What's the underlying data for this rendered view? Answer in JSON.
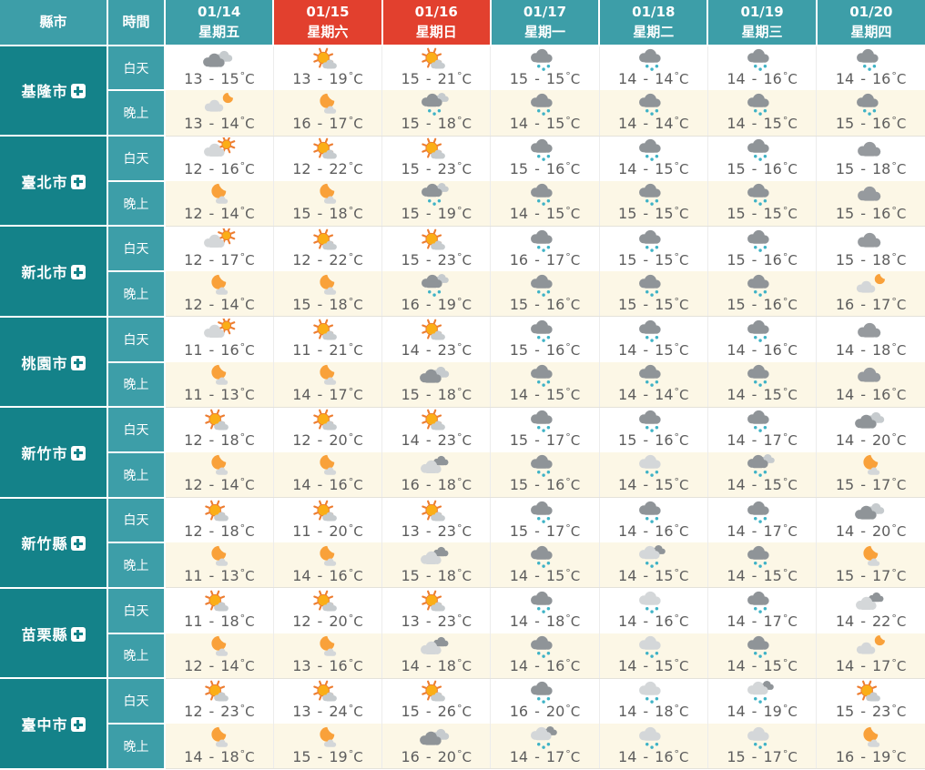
{
  "table": {
    "corner": {
      "county": "縣市",
      "time": "時間"
    },
    "row_labels": {
      "day": "白天",
      "night": "晚上"
    },
    "temp_unit_degree": "°",
    "temp_unit_letter": "C",
    "temp_separator": "-",
    "columns": [
      {
        "date": "01/14",
        "weekday": "星期五",
        "holiday": false
      },
      {
        "date": "01/15",
        "weekday": "星期六",
        "holiday": true
      },
      {
        "date": "01/16",
        "weekday": "星期日",
        "holiday": true
      },
      {
        "date": "01/17",
        "weekday": "星期一",
        "holiday": false
      },
      {
        "date": "01/18",
        "weekday": "星期二",
        "holiday": false
      },
      {
        "date": "01/19",
        "weekday": "星期三",
        "holiday": false
      },
      {
        "date": "01/20",
        "weekday": "星期四",
        "holiday": false
      }
    ],
    "cities": [
      {
        "name": "基隆市",
        "day": [
          {
            "icon": "cloudy",
            "low": 13,
            "high": 15
          },
          {
            "icon": "sun-cloud",
            "low": 13,
            "high": 19
          },
          {
            "icon": "sun-cloud",
            "low": 15,
            "high": 21
          },
          {
            "icon": "rain",
            "low": 15,
            "high": 15
          },
          {
            "icon": "rain",
            "low": 14,
            "high": 14
          },
          {
            "icon": "rain",
            "low": 14,
            "high": 16
          },
          {
            "icon": "rain",
            "low": 14,
            "high": 16
          }
        ],
        "night": [
          {
            "icon": "cloud-moon",
            "low": 13,
            "high": 14
          },
          {
            "icon": "moon-cloud",
            "low": 16,
            "high": 17
          },
          {
            "icon": "rain2",
            "low": 15,
            "high": 18
          },
          {
            "icon": "rain",
            "low": 14,
            "high": 15
          },
          {
            "icon": "rain",
            "low": 14,
            "high": 14
          },
          {
            "icon": "rain",
            "low": 14,
            "high": 15
          },
          {
            "icon": "rain",
            "low": 15,
            "high": 16
          }
        ]
      },
      {
        "name": "臺北市",
        "day": [
          {
            "icon": "cloud-sun",
            "low": 12,
            "high": 16
          },
          {
            "icon": "sun-cloud",
            "low": 12,
            "high": 22
          },
          {
            "icon": "sun-cloud",
            "low": 15,
            "high": 23
          },
          {
            "icon": "rain",
            "low": 15,
            "high": 16
          },
          {
            "icon": "rain",
            "low": 14,
            "high": 15
          },
          {
            "icon": "rain",
            "low": 15,
            "high": 16
          },
          {
            "icon": "cloud",
            "low": 15,
            "high": 18
          }
        ],
        "night": [
          {
            "icon": "moon-cloud",
            "low": 12,
            "high": 14
          },
          {
            "icon": "moon-cloud",
            "low": 15,
            "high": 18
          },
          {
            "icon": "rain2",
            "low": 15,
            "high": 19
          },
          {
            "icon": "rain",
            "low": 14,
            "high": 15
          },
          {
            "icon": "rain",
            "low": 15,
            "high": 15
          },
          {
            "icon": "rain",
            "low": 15,
            "high": 15
          },
          {
            "icon": "cloud",
            "low": 15,
            "high": 16
          }
        ]
      },
      {
        "name": "新北市",
        "day": [
          {
            "icon": "cloud-sun",
            "low": 12,
            "high": 17
          },
          {
            "icon": "sun-cloud",
            "low": 12,
            "high": 22
          },
          {
            "icon": "sun-cloud",
            "low": 15,
            "high": 23
          },
          {
            "icon": "rain",
            "low": 16,
            "high": 17
          },
          {
            "icon": "rain",
            "low": 15,
            "high": 15
          },
          {
            "icon": "rain",
            "low": 15,
            "high": 16
          },
          {
            "icon": "cloud",
            "low": 15,
            "high": 18
          }
        ],
        "night": [
          {
            "icon": "moon-cloud",
            "low": 12,
            "high": 14
          },
          {
            "icon": "moon-cloud",
            "low": 15,
            "high": 18
          },
          {
            "icon": "rain2",
            "low": 16,
            "high": 19
          },
          {
            "icon": "rain",
            "low": 15,
            "high": 16
          },
          {
            "icon": "rain",
            "low": 15,
            "high": 15
          },
          {
            "icon": "rain",
            "low": 15,
            "high": 16
          },
          {
            "icon": "cloud-moon",
            "low": 16,
            "high": 17
          }
        ]
      },
      {
        "name": "桃園市",
        "day": [
          {
            "icon": "cloud-sun",
            "low": 11,
            "high": 16
          },
          {
            "icon": "sun-cloud",
            "low": 11,
            "high": 21
          },
          {
            "icon": "sun-cloud",
            "low": 14,
            "high": 23
          },
          {
            "icon": "rain",
            "low": 15,
            "high": 16
          },
          {
            "icon": "rain",
            "low": 14,
            "high": 15
          },
          {
            "icon": "rain",
            "low": 14,
            "high": 16
          },
          {
            "icon": "cloud",
            "low": 14,
            "high": 18
          }
        ],
        "night": [
          {
            "icon": "moon-cloud",
            "low": 11,
            "high": 13
          },
          {
            "icon": "moon-cloud",
            "low": 14,
            "high": 17
          },
          {
            "icon": "cloudy",
            "low": 15,
            "high": 18
          },
          {
            "icon": "rain",
            "low": 14,
            "high": 15
          },
          {
            "icon": "rain",
            "low": 14,
            "high": 14
          },
          {
            "icon": "rain",
            "low": 14,
            "high": 15
          },
          {
            "icon": "cloud",
            "low": 14,
            "high": 16
          }
        ]
      },
      {
        "name": "新竹市",
        "day": [
          {
            "icon": "sun-cloud",
            "low": 12,
            "high": 18
          },
          {
            "icon": "sun-cloud",
            "low": 12,
            "high": 20
          },
          {
            "icon": "sun-cloud",
            "low": 14,
            "high": 23
          },
          {
            "icon": "rain",
            "low": 15,
            "high": 17
          },
          {
            "icon": "rain",
            "low": 15,
            "high": 16
          },
          {
            "icon": "rain",
            "low": 14,
            "high": 17
          },
          {
            "icon": "cloudy",
            "low": 14,
            "high": 20
          }
        ],
        "night": [
          {
            "icon": "moon-cloud",
            "low": 12,
            "high": 14
          },
          {
            "icon": "moon-cloud",
            "low": 14,
            "high": 16
          },
          {
            "icon": "cloudy2",
            "low": 16,
            "high": 18
          },
          {
            "icon": "rain",
            "low": 15,
            "high": 16
          },
          {
            "icon": "rain-light",
            "low": 14,
            "high": 15
          },
          {
            "icon": "rain2",
            "low": 14,
            "high": 15
          },
          {
            "icon": "moon-cloud",
            "low": 15,
            "high": 17
          }
        ]
      },
      {
        "name": "新竹縣",
        "day": [
          {
            "icon": "sun-cloud",
            "low": 12,
            "high": 18
          },
          {
            "icon": "sun-cloud",
            "low": 11,
            "high": 20
          },
          {
            "icon": "sun-cloud",
            "low": 13,
            "high": 23
          },
          {
            "icon": "rain",
            "low": 15,
            "high": 17
          },
          {
            "icon": "rain",
            "low": 14,
            "high": 16
          },
          {
            "icon": "rain",
            "low": 14,
            "high": 17
          },
          {
            "icon": "cloudy",
            "low": 14,
            "high": 20
          }
        ],
        "night": [
          {
            "icon": "moon-cloud",
            "low": 11,
            "high": 13
          },
          {
            "icon": "moon-cloud",
            "low": 14,
            "high": 16
          },
          {
            "icon": "cloudy2",
            "low": 15,
            "high": 18
          },
          {
            "icon": "rain",
            "low": 14,
            "high": 15
          },
          {
            "icon": "rain-mix",
            "low": 14,
            "high": 15
          },
          {
            "icon": "rain",
            "low": 14,
            "high": 15
          },
          {
            "icon": "moon-cloud",
            "low": 15,
            "high": 17
          }
        ]
      },
      {
        "name": "苗栗縣",
        "day": [
          {
            "icon": "sun-cloud",
            "low": 11,
            "high": 18
          },
          {
            "icon": "sun-cloud",
            "low": 12,
            "high": 20
          },
          {
            "icon": "sun-cloud",
            "low": 13,
            "high": 23
          },
          {
            "icon": "rain",
            "low": 14,
            "high": 18
          },
          {
            "icon": "rain-light",
            "low": 14,
            "high": 16
          },
          {
            "icon": "rain",
            "low": 14,
            "high": 17
          },
          {
            "icon": "cloudy2",
            "low": 14,
            "high": 22
          }
        ],
        "night": [
          {
            "icon": "moon-cloud",
            "low": 12,
            "high": 14
          },
          {
            "icon": "moon-cloud",
            "low": 13,
            "high": 16
          },
          {
            "icon": "cloudy2",
            "low": 14,
            "high": 18
          },
          {
            "icon": "rain",
            "low": 14,
            "high": 16
          },
          {
            "icon": "rain-light",
            "low": 14,
            "high": 15
          },
          {
            "icon": "rain",
            "low": 14,
            "high": 15
          },
          {
            "icon": "cloud-moon",
            "low": 14,
            "high": 17
          }
        ]
      },
      {
        "name": "臺中市",
        "day": [
          {
            "icon": "sun-cloud",
            "low": 12,
            "high": 23
          },
          {
            "icon": "sun-cloud",
            "low": 13,
            "high": 24
          },
          {
            "icon": "sun-cloud",
            "low": 15,
            "high": 26
          },
          {
            "icon": "rain",
            "low": 16,
            "high": 20
          },
          {
            "icon": "rain-light",
            "low": 14,
            "high": 18
          },
          {
            "icon": "rain-mix",
            "low": 14,
            "high": 19
          },
          {
            "icon": "sun-cloud",
            "low": 15,
            "high": 23
          }
        ],
        "night": [
          {
            "icon": "moon-cloud",
            "low": 14,
            "high": 18
          },
          {
            "icon": "moon-cloud",
            "low": 15,
            "high": 19
          },
          {
            "icon": "cloudy",
            "low": 16,
            "high": 20
          },
          {
            "icon": "rain-mix",
            "low": 14,
            "high": 17
          },
          {
            "icon": "rain-light",
            "low": 14,
            "high": 16
          },
          {
            "icon": "rain-light",
            "low": 15,
            "high": 17
          },
          {
            "icon": "moon-cloud",
            "low": 16,
            "high": 19
          }
        ]
      }
    ]
  },
  "colors": {
    "header_teal": "#3D9EA8",
    "holiday_red": "#E2402E",
    "city_teal_dark": "#148289",
    "night_row_cream": "#FCF7E6",
    "day_row_white": "#FFFFFF",
    "temp_text": "#5d5d5d",
    "rain_drop": "#3FB3C6",
    "sun_fill": "#FBAE17",
    "sun_rays": "#ED7D31",
    "moon_fill": "#F9A13A",
    "cloud_dark": "#8F9498",
    "cloud_light": "#D4D7D9",
    "cloud_mid": "#C6CBCE"
  }
}
